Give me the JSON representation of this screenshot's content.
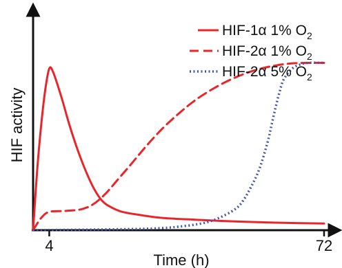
{
  "chart_data": {
    "type": "line",
    "xlabel": "Time (h)",
    "ylabel": "HIF activity",
    "x_ticks": [
      4,
      72
    ],
    "xlim": [
      0,
      72
    ],
    "ylim": [
      0,
      1
    ],
    "y_ticks_shown": false,
    "grid": false,
    "legend_position": "top-right",
    "legend": [
      {
        "main": "HIF-1α 1% O",
        "sub": "2"
      },
      {
        "main": "HIF-2α 1% O",
        "sub": "2"
      },
      {
        "main": "HIF-2α 5% O",
        "sub": "2"
      }
    ],
    "series": [
      {
        "name": "HIF-1α 1% O2",
        "color": "#e8262a",
        "style": "solid",
        "points": [
          [
            0,
            0
          ],
          [
            1,
            0.34
          ],
          [
            2,
            0.6
          ],
          [
            3,
            0.8
          ],
          [
            4,
            0.922
          ],
          [
            5,
            0.9
          ],
          [
            7,
            0.76
          ],
          [
            9,
            0.6
          ],
          [
            11,
            0.46
          ],
          [
            13,
            0.34
          ],
          [
            15,
            0.24
          ],
          [
            17,
            0.17
          ],
          [
            19,
            0.135
          ],
          [
            22,
            0.105
          ],
          [
            27,
            0.085
          ],
          [
            32,
            0.07
          ],
          [
            40,
            0.06
          ],
          [
            50,
            0.05
          ],
          [
            60,
            0.043
          ],
          [
            72,
            0.038
          ]
        ]
      },
      {
        "name": "HIF-2α 1% O2",
        "color": "#e8262a",
        "style": "dashed",
        "points": [
          [
            0,
            0
          ],
          [
            2,
            0.07
          ],
          [
            4,
            0.105
          ],
          [
            8,
            0.11
          ],
          [
            12,
            0.12
          ],
          [
            15,
            0.15
          ],
          [
            18,
            0.21
          ],
          [
            21,
            0.29
          ],
          [
            24,
            0.37
          ],
          [
            28,
            0.48
          ],
          [
            32,
            0.58
          ],
          [
            36,
            0.665
          ],
          [
            40,
            0.74
          ],
          [
            44,
            0.8
          ],
          [
            48,
            0.85
          ],
          [
            52,
            0.89
          ],
          [
            56,
            0.92
          ],
          [
            60,
            0.94
          ],
          [
            64,
            0.952
          ],
          [
            68,
            0.955
          ],
          [
            72,
            0.955
          ]
        ]
      },
      {
        "name": "HIF-2α 5% O2",
        "color": "#4357a8",
        "style": "dotted",
        "points": [
          [
            0,
            0
          ],
          [
            20,
            0.005
          ],
          [
            30,
            0.01
          ],
          [
            36,
            0.02
          ],
          [
            42,
            0.04
          ],
          [
            46,
            0.07
          ],
          [
            50,
            0.12
          ],
          [
            52,
            0.17
          ],
          [
            54,
            0.25
          ],
          [
            56,
            0.35
          ],
          [
            58,
            0.5
          ],
          [
            59,
            0.6
          ],
          [
            60,
            0.7
          ],
          [
            61,
            0.79
          ],
          [
            62,
            0.86
          ],
          [
            64,
            0.92
          ],
          [
            66,
            0.945
          ],
          [
            68,
            0.955
          ],
          [
            72,
            0.955
          ]
        ]
      }
    ]
  }
}
